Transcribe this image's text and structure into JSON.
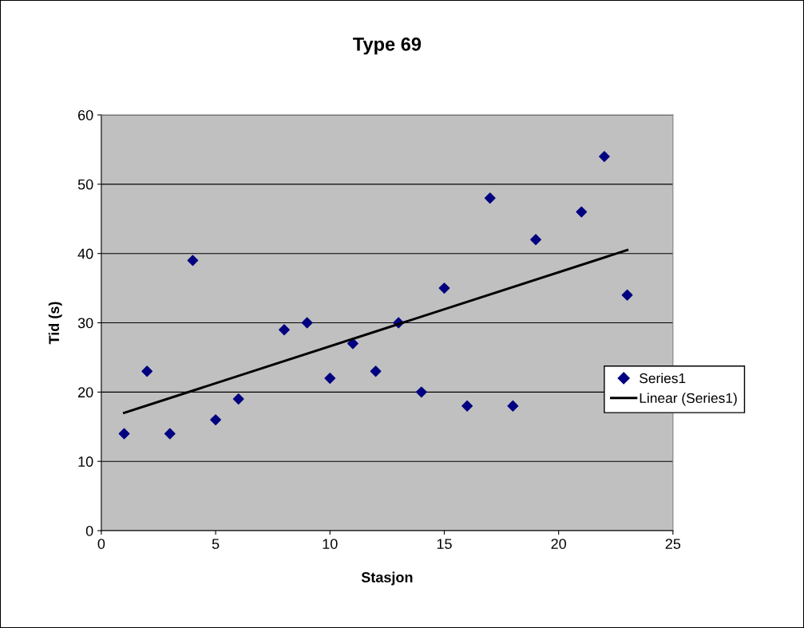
{
  "chart_data": {
    "type": "scatter",
    "title": "Type 69",
    "xlabel": "Stasjon",
    "ylabel": "Tid (s)",
    "xlim": [
      0,
      25
    ],
    "xticks": [
      0,
      5,
      10,
      15,
      20,
      25
    ],
    "ylim": [
      0,
      60
    ],
    "yticks": [
      0,
      10,
      20,
      30,
      40,
      50,
      60
    ],
    "grid": "y",
    "legend": "right",
    "series": [
      {
        "name": "Series1",
        "color": "#000080",
        "marker": "diamond",
        "x": [
          1,
          2,
          3,
          4,
          5,
          6,
          8,
          9,
          10,
          11,
          12,
          13,
          14,
          15,
          16,
          17,
          18,
          19,
          21,
          22,
          23
        ],
        "values": [
          14,
          23,
          14,
          39,
          16,
          19,
          29,
          30,
          22,
          27,
          23,
          30,
          20,
          35,
          18,
          48,
          18,
          42,
          46,
          54,
          34
        ]
      },
      {
        "name": "Linear (Series1)",
        "type": "line",
        "color": "#000000",
        "marker": "none",
        "line_style": "solid",
        "x": [
          1,
          23
        ],
        "values": [
          17,
          40.5
        ]
      }
    ]
  }
}
